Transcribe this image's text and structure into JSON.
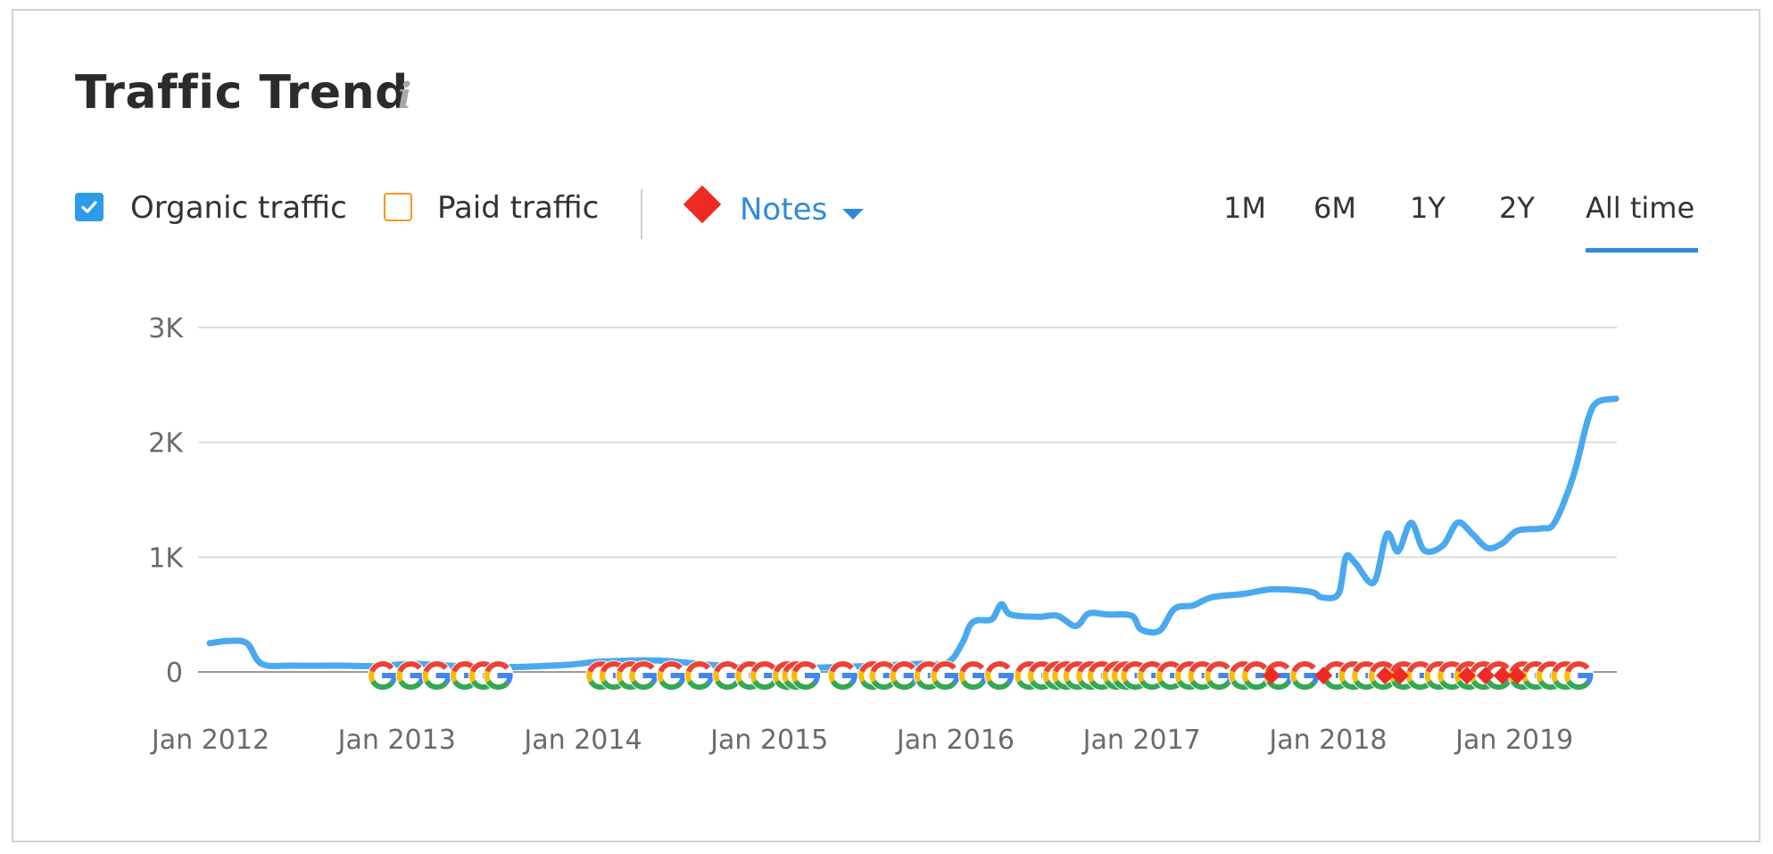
{
  "header": {
    "title": "Traffic Trend",
    "info_icon": "i"
  },
  "controls": {
    "organic_label": "Organic traffic",
    "organic_checked": true,
    "paid_label": "Paid traffic",
    "paid_checked": false,
    "notes_label": "Notes"
  },
  "periods": [
    {
      "label": "1M",
      "active": false
    },
    {
      "label": "6M",
      "active": false
    },
    {
      "label": "1Y",
      "active": false
    },
    {
      "label": "2Y",
      "active": false
    },
    {
      "label": "All time",
      "active": true
    }
  ],
  "colors": {
    "organic": "#4aa9ee",
    "paid": "#f6971f",
    "accent": "#2e8bd8",
    "note_marker": "#ee2a24",
    "google_blue": "#4285f4",
    "google_red": "#ea4335",
    "google_yellow": "#fbbc05",
    "google_green": "#34a853"
  },
  "chart_data": {
    "type": "line",
    "ylim": [
      0,
      3000
    ],
    "y_ticks": [
      0,
      1000,
      2000,
      3000
    ],
    "y_tick_labels": [
      "0",
      "1K",
      "2K",
      "3K"
    ],
    "x_tick_labels": [
      "Jan 2012",
      "Jan 2013",
      "Jan 2014",
      "Jan 2015",
      "Jan 2016",
      "Jan 2017",
      "Jan 2018",
      "Jan 2019"
    ],
    "x_tick_years": [
      2012,
      2013,
      2014,
      2015,
      2016,
      2017,
      2018,
      2019
    ],
    "grid": true,
    "series": [
      {
        "name": "Organic traffic",
        "points": [
          [
            2012.0,
            250
          ],
          [
            2012.1,
            270
          ],
          [
            2012.2,
            250
          ],
          [
            2012.28,
            70
          ],
          [
            2012.45,
            55
          ],
          [
            2012.7,
            55
          ],
          [
            2012.9,
            50
          ],
          [
            2013.1,
            70
          ],
          [
            2013.5,
            40
          ],
          [
            2013.9,
            60
          ],
          [
            2014.1,
            90
          ],
          [
            2014.4,
            100
          ],
          [
            2014.7,
            60
          ],
          [
            2015.0,
            30
          ],
          [
            2015.5,
            50
          ],
          [
            2015.8,
            70
          ],
          [
            2015.96,
            80
          ],
          [
            2016.04,
            250
          ],
          [
            2016.08,
            400
          ],
          [
            2016.12,
            450
          ],
          [
            2016.2,
            460
          ],
          [
            2016.25,
            590
          ],
          [
            2016.3,
            500
          ],
          [
            2016.45,
            480
          ],
          [
            2016.55,
            490
          ],
          [
            2016.65,
            400
          ],
          [
            2016.72,
            510
          ],
          [
            2016.82,
            500
          ],
          [
            2016.95,
            490
          ],
          [
            2017.0,
            370
          ],
          [
            2017.1,
            360
          ],
          [
            2017.18,
            550
          ],
          [
            2017.28,
            580
          ],
          [
            2017.38,
            650
          ],
          [
            2017.55,
            680
          ],
          [
            2017.7,
            720
          ],
          [
            2017.85,
            710
          ],
          [
            2017.93,
            690
          ],
          [
            2017.97,
            650
          ],
          [
            2018.06,
            680
          ],
          [
            2018.1,
            1000
          ],
          [
            2018.15,
            950
          ],
          [
            2018.25,
            780
          ],
          [
            2018.32,
            1200
          ],
          [
            2018.38,
            1050
          ],
          [
            2018.45,
            1300
          ],
          [
            2018.52,
            1060
          ],
          [
            2018.62,
            1100
          ],
          [
            2018.7,
            1300
          ],
          [
            2018.78,
            1200
          ],
          [
            2018.86,
            1080
          ],
          [
            2018.94,
            1120
          ],
          [
            2019.02,
            1230
          ],
          [
            2019.15,
            1250
          ],
          [
            2019.22,
            1300
          ],
          [
            2019.32,
            1700
          ],
          [
            2019.4,
            2200
          ],
          [
            2019.45,
            2350
          ],
          [
            2019.55,
            2380
          ]
        ]
      }
    ],
    "google_update_markers": [
      2012.93,
      2013.08,
      2013.22,
      2013.37,
      2013.47,
      2013.55,
      2014.1,
      2014.17,
      2014.26,
      2014.33,
      2014.48,
      2014.63,
      2014.78,
      2014.9,
      2014.98,
      2015.1,
      2015.15,
      2015.2,
      2015.4,
      2015.56,
      2015.62,
      2015.73,
      2015.86,
      2015.95,
      2016.1,
      2016.24,
      2016.4,
      2016.47,
      2016.55,
      2016.6,
      2016.66,
      2016.73,
      2016.79,
      2016.87,
      2016.92,
      2016.97,
      2017.06,
      2017.16,
      2017.26,
      2017.33,
      2017.42,
      2017.55,
      2017.62,
      2017.74,
      2017.88,
      2018.05,
      2018.14,
      2018.21,
      2018.3,
      2018.41,
      2018.5,
      2018.6,
      2018.67,
      2018.76,
      2018.84,
      2018.92,
      2019.05,
      2019.12,
      2019.2,
      2019.28,
      2019.35
    ],
    "note_markers": [
      2017.7,
      2017.98,
      2018.31,
      2018.39,
      2018.75,
      2018.85,
      2018.94,
      2019.02
    ]
  }
}
